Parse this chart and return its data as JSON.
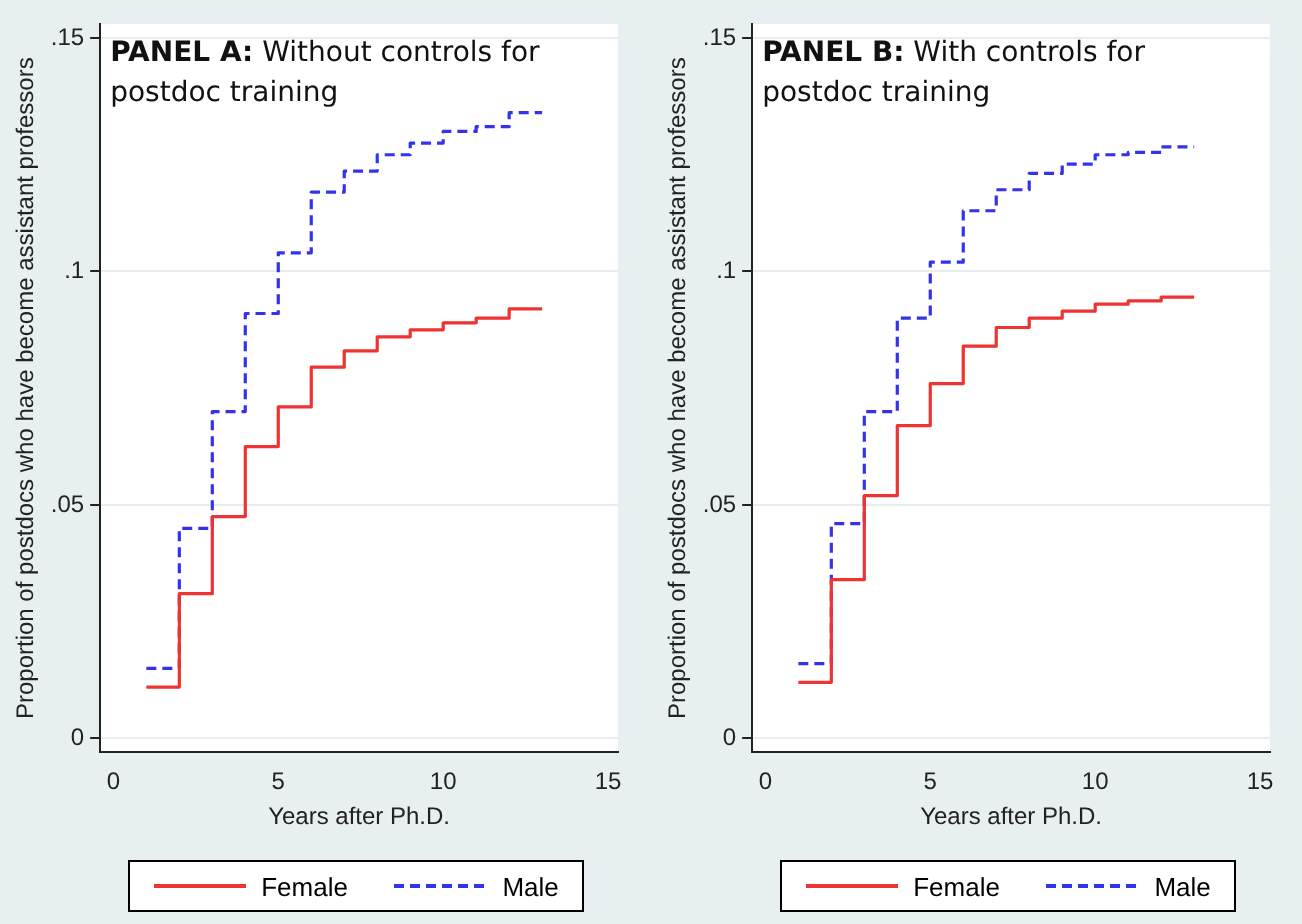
{
  "chart_data": [
    {
      "type": "step",
      "title": "PANEL A: Without controls for postdoc training",
      "xlabel": "Years after Ph.D.",
      "ylabel": "Proportion of postdocs who have become assistant professors",
      "x": [
        1,
        2,
        3,
        4,
        5,
        6,
        7,
        8,
        9,
        10,
        11,
        12,
        13
      ],
      "series": [
        {
          "name": "Female",
          "color": "#ee3333",
          "line_style": "solid",
          "values": [
            0.011,
            0.031,
            0.0475,
            0.0625,
            0.071,
            0.0795,
            0.083,
            0.086,
            0.0875,
            0.089,
            0.09,
            0.092,
            0.092
          ]
        },
        {
          "name": "Male",
          "color": "#3333ee",
          "line_style": "dashed",
          "values": [
            0.015,
            0.045,
            0.07,
            0.091,
            0.104,
            0.117,
            0.1215,
            0.125,
            0.1275,
            0.13,
            0.131,
            0.134,
            0.134
          ]
        }
      ],
      "xlim": [
        -0.4,
        15.3
      ],
      "xticks": [
        0,
        5,
        10,
        15
      ],
      "ylim": [
        -0.003,
        0.153
      ],
      "yticks": [
        {
          "value": 0,
          "label": "0"
        },
        {
          "value": 0.05,
          "label": ".05"
        },
        {
          "value": 0.1,
          "label": ".1"
        },
        {
          "value": 0.15,
          "label": ".15"
        }
      ],
      "grid": "y",
      "legend": "bottom"
    },
    {
      "type": "step",
      "title": "PANEL B: With controls for postdoc training",
      "xlabel": "Years after Ph.D.",
      "ylabel": "Proportion of postdocs who have become assistant professors",
      "x": [
        1,
        2,
        3,
        4,
        5,
        6,
        7,
        8,
        9,
        10,
        11,
        12,
        13
      ],
      "series": [
        {
          "name": "Female",
          "color": "#ee3333",
          "line_style": "solid",
          "values": [
            0.012,
            0.034,
            0.052,
            0.067,
            0.076,
            0.084,
            0.088,
            0.09,
            0.0915,
            0.093,
            0.0937,
            0.0945,
            0.0945
          ]
        },
        {
          "name": "Male",
          "color": "#3333ee",
          "line_style": "dashed",
          "values": [
            0.016,
            0.046,
            0.07,
            0.09,
            0.102,
            0.113,
            0.1175,
            0.121,
            0.123,
            0.125,
            0.1255,
            0.1267,
            0.1267
          ]
        }
      ],
      "xlim": [
        -0.4,
        15.3
      ],
      "xticks": [
        0,
        5,
        10,
        15
      ],
      "ylim": [
        -0.003,
        0.153
      ],
      "yticks": [
        {
          "value": 0,
          "label": "0"
        },
        {
          "value": 0.05,
          "label": ".05"
        },
        {
          "value": 0.1,
          "label": ".1"
        },
        {
          "value": 0.15,
          "label": ".15"
        }
      ],
      "grid": "y",
      "legend": "bottom"
    }
  ]
}
